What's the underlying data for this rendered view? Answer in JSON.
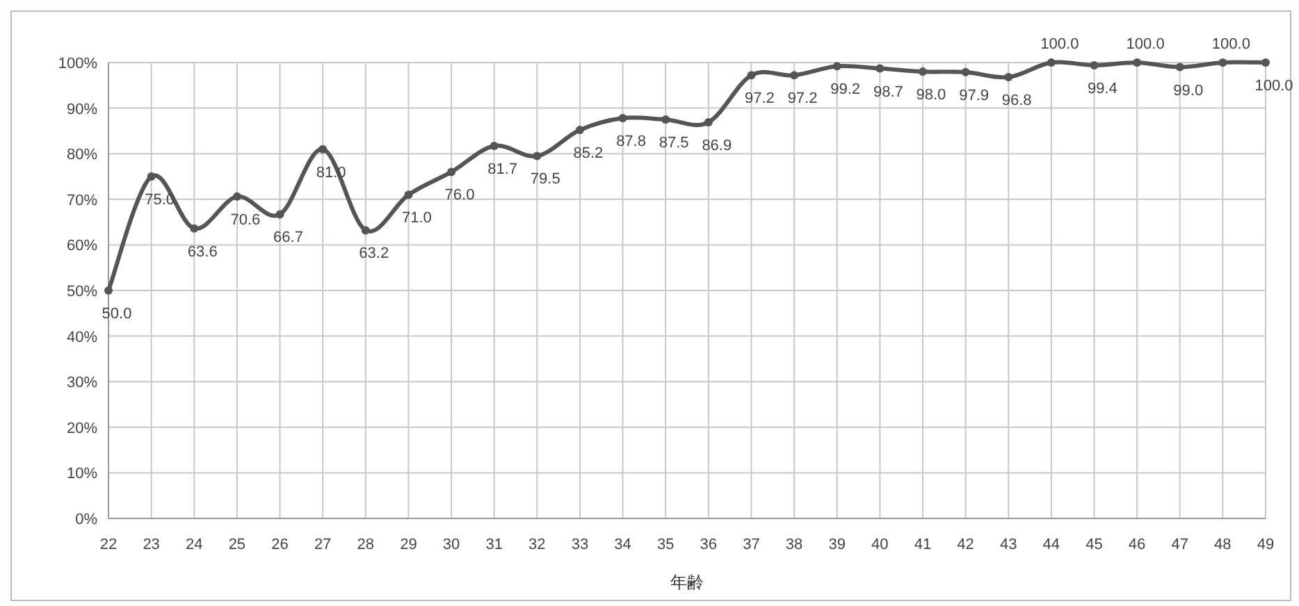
{
  "chart_data": {
    "type": "line",
    "xlabel": "年齢",
    "categories": [
      "22",
      "23",
      "24",
      "25",
      "26",
      "27",
      "28",
      "29",
      "30",
      "31",
      "32",
      "33",
      "34",
      "35",
      "36",
      "37",
      "38",
      "39",
      "40",
      "41",
      "42",
      "43",
      "44",
      "45",
      "46",
      "47",
      "48",
      "49"
    ],
    "series": [
      {
        "color": "#555555",
        "values": [
          50.0,
          75.0,
          63.6,
          70.6,
          66.7,
          81.0,
          63.2,
          71.0,
          76.0,
          81.7,
          79.5,
          85.2,
          87.8,
          87.5,
          86.9,
          97.2,
          97.2,
          99.2,
          98.7,
          98.0,
          97.9,
          96.8,
          100.0,
          99.4,
          100.0,
          99.0,
          100.0,
          100.0
        ],
        "value_labels": [
          "50.0",
          "75.0",
          "63.6",
          "70.6",
          "66.7",
          "81.0",
          "63.2",
          "71.0",
          "76.0",
          "81.7",
          "79.5",
          "85.2",
          "87.8",
          "87.5",
          "86.9",
          "97.2",
          "97.2",
          "99.2",
          "98.7",
          "98.0",
          "97.9",
          "96.8",
          "100.0",
          "99.4",
          "100.0",
          "99.0",
          "100.0",
          "100.0"
        ]
      }
    ],
    "ylim": [
      0,
      100
    ],
    "yticks": [
      {
        "value": 0,
        "label": "0%"
      },
      {
        "value": 10,
        "label": "10%"
      },
      {
        "value": 20,
        "label": "20%"
      },
      {
        "value": 30,
        "label": "30%"
      },
      {
        "value": 40,
        "label": "40%"
      },
      {
        "value": 50,
        "label": "50%"
      },
      {
        "value": 60,
        "label": "60%"
      },
      {
        "value": 70,
        "label": "70%"
      },
      {
        "value": 80,
        "label": "80%"
      },
      {
        "value": 90,
        "label": "90%"
      },
      {
        "value": 100,
        "label": "100%"
      }
    ],
    "grid": true,
    "marker": "circle",
    "line_style": "solid"
  }
}
